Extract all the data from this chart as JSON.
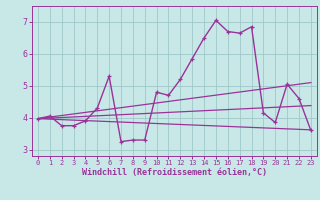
{
  "background_color": "#c8e8e8",
  "grid_color": "#a0c8c8",
  "line_color": "#993399",
  "xlabel": "Windchill (Refroidissement éolien,°C)",
  "xlim": [
    -0.5,
    23.5
  ],
  "ylim": [
    2.8,
    7.5
  ],
  "yticks": [
    3,
    4,
    5,
    6,
    7
  ],
  "xticks": [
    0,
    1,
    2,
    3,
    4,
    5,
    6,
    7,
    8,
    9,
    10,
    11,
    12,
    13,
    14,
    15,
    16,
    17,
    18,
    19,
    20,
    21,
    22,
    23
  ],
  "main_x": [
    0,
    1,
    2,
    3,
    4,
    5,
    6,
    7,
    8,
    9,
    10,
    11,
    12,
    13,
    14,
    15,
    16,
    17,
    18,
    19,
    20,
    21,
    22,
    23
  ],
  "main_y": [
    3.97,
    4.05,
    3.75,
    3.75,
    3.9,
    4.3,
    5.3,
    3.25,
    3.3,
    3.3,
    4.8,
    4.7,
    5.2,
    5.85,
    6.5,
    7.05,
    6.7,
    6.65,
    6.85,
    4.15,
    3.85,
    5.05,
    4.6,
    3.6
  ],
  "trend_lines": [
    {
      "x": [
        0,
        23
      ],
      "y": [
        3.97,
        3.62
      ]
    },
    {
      "x": [
        0,
        23
      ],
      "y": [
        3.97,
        5.1
      ]
    },
    {
      "x": [
        0,
        23
      ],
      "y": [
        3.97,
        4.38
      ]
    }
  ]
}
